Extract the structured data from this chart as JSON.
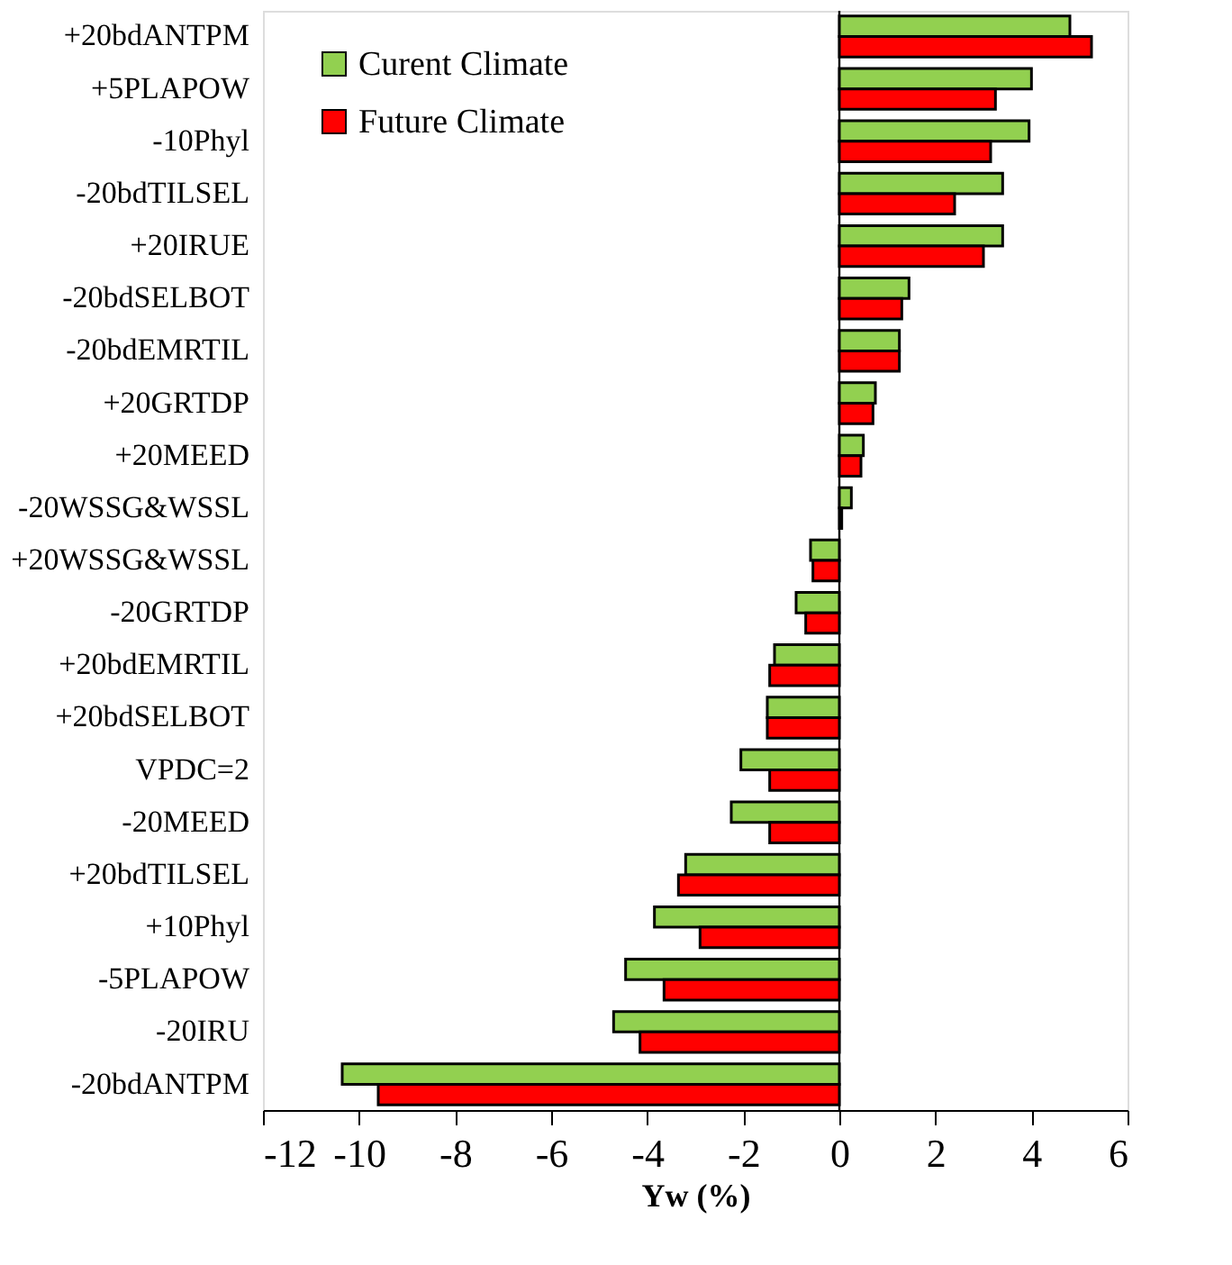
{
  "chart_data": {
    "type": "bar",
    "orientation": "horizontal",
    "xlabel": "Yw (%)",
    "categories": [
      "+20bdANTPM",
      "+5PLAPOW",
      "-10Phyl",
      "-20bdTILSEL",
      "+20IRUE",
      "-20bdSELBOT",
      "-20bdEMRTIL",
      "+20GRTDP",
      "+20MEED",
      "-20WSSG&WSSL",
      "+20WSSG&WSSL",
      "-20GRTDP",
      "+20bdEMRTIL",
      "+20bdSELBOT",
      "VPDC=2",
      "-20MEED",
      "+20bdTILSEL",
      "+10Phyl",
      "-5PLAPOW",
      "-20IRU",
      "-20bdANTPM"
    ],
    "series": [
      {
        "name": "Curent Climate",
        "color": "#92d050",
        "values": [
          4.8,
          4.0,
          3.95,
          3.4,
          3.4,
          1.45,
          1.25,
          0.75,
          0.5,
          0.25,
          -0.6,
          -0.9,
          -1.35,
          -1.5,
          -2.05,
          -2.25,
          -3.2,
          -3.85,
          -4.45,
          -4.7,
          -10.35
        ]
      },
      {
        "name": "Future Climate",
        "color": "#ff0000",
        "values": [
          5.25,
          3.25,
          3.15,
          2.4,
          3.0,
          1.3,
          1.25,
          0.7,
          0.45,
          0.05,
          -0.55,
          -0.7,
          -1.45,
          -1.5,
          -1.45,
          -1.45,
          -3.35,
          -2.9,
          -3.65,
          -4.15,
          -9.6
        ]
      }
    ],
    "xlim": [
      -12,
      6
    ],
    "xticks": [
      -12,
      -10,
      -8,
      -6,
      -4,
      -2,
      0,
      2,
      4,
      6
    ],
    "ref_lines": [
      {
        "axis": "x",
        "value": 0
      }
    ],
    "legend": "top left",
    "grid": false
  }
}
